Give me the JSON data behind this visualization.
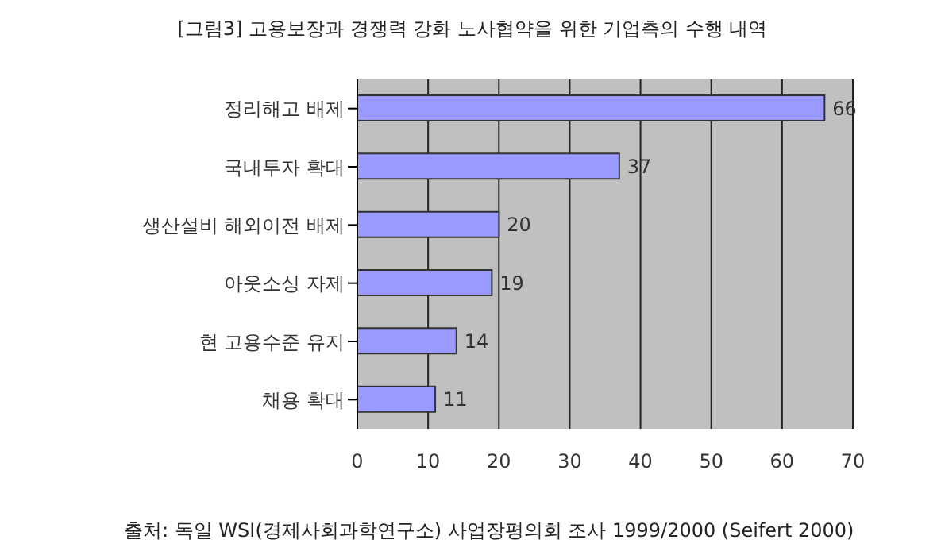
{
  "chart_data": {
    "type": "bar",
    "orientation": "horizontal",
    "title": "[그림3] 고용보장과 경쟁력 강화 노사협약을 위한 기업측의 수행 내역",
    "categories": [
      "정리해고 배제",
      "국내투자 확대",
      "생산설비 해외이전 배제",
      "아웃소싱 자제",
      "현 고용수준 유지",
      "채용 확대"
    ],
    "values": [
      66,
      37,
      20,
      19,
      14,
      11
    ],
    "color": "#9999ff",
    "data_labels": true,
    "xlim": [
      0,
      70
    ],
    "xticks": [
      0,
      10,
      20,
      30,
      40,
      50,
      60,
      70
    ],
    "grid": "x",
    "annotations": [
      "출처: 독일 WSI(경제사회과학연구소) 사업장평의회 조사 1999/2000 (Seifert 2000)"
    ]
  }
}
